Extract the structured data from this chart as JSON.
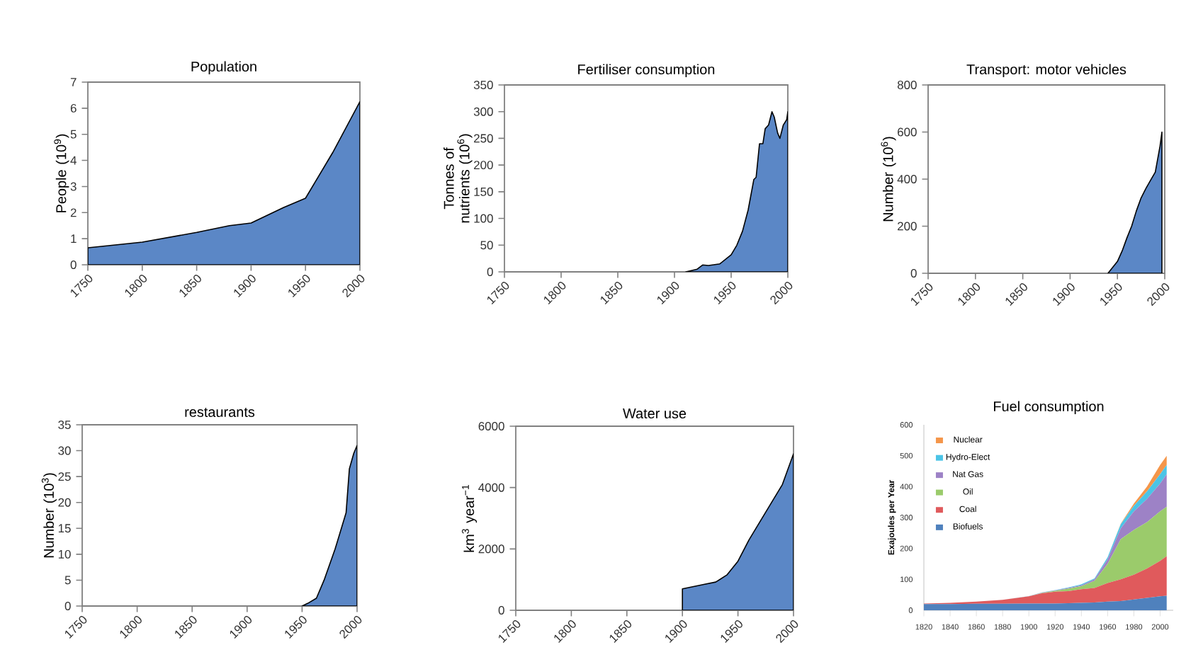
{
  "chart_data": [
    {
      "type": "area",
      "title": "Population",
      "ylabel": "People (10$^{9}$)",
      "color": "#5b87c6",
      "x": [
        1750,
        1800,
        1850,
        1880,
        1900,
        1930,
        1950,
        1975,
        2000
      ],
      "values": [
        0.65,
        0.87,
        1.24,
        1.5,
        1.6,
        2.2,
        2.55,
        4.3,
        6.25
      ],
      "xlim": [
        1750,
        2000
      ],
      "ylim": [
        0,
        7
      ],
      "xticks": [
        1750,
        1800,
        1850,
        1900,
        1950,
        2000
      ],
      "yticks": [
        0,
        1,
        2,
        3,
        4,
        5,
        6,
        7
      ]
    },
    {
      "type": "area",
      "title": "Fertiliser consumption",
      "ylabel": "Tonnes of nutrients (10$^{6}$)",
      "color": "#5b87c6",
      "x": [
        1910,
        1920,
        1925,
        1930,
        1940,
        1950,
        1955,
        1960,
        1965,
        1970,
        1972,
        1975,
        1978,
        1980,
        1983,
        1986,
        1988,
        1991,
        1993,
        1996,
        1999,
        2000
      ],
      "values": [
        0,
        5,
        13,
        12,
        15,
        32,
        50,
        76,
        116,
        173,
        177,
        240,
        240,
        268,
        275,
        300,
        290,
        260,
        250,
        275,
        285,
        300
      ],
      "xlim": [
        1750,
        2000
      ],
      "ylim": [
        0,
        350
      ],
      "xticks": [
        1750,
        1800,
        1850,
        1900,
        1950,
        2000
      ],
      "yticks": [
        0,
        50,
        100,
        150,
        200,
        250,
        300,
        350
      ]
    },
    {
      "type": "area",
      "title": "Transport: motor vehicles",
      "ylabel": "Number (10$^{6}$)",
      "color": "#5b87c6",
      "x": [
        1940,
        1945,
        1950,
        1955,
        1960,
        1965,
        1970,
        1975,
        1980,
        1985,
        1990,
        1995,
        1997
      ],
      "values": [
        0,
        25,
        50,
        95,
        150,
        200,
        265,
        320,
        360,
        395,
        430,
        540,
        600
      ],
      "xlim": [
        1750,
        2000
      ],
      "ylim": [
        0,
        800
      ],
      "xticks": [
        1750,
        1800,
        1850,
        1900,
        1950,
        2000
      ],
      "yticks": [
        0,
        200,
        400,
        600,
        800
      ]
    },
    {
      "type": "area",
      "title": "restaurants",
      "ylabel": "Number (10$^{3}$)",
      "color": "#5b87c6",
      "x": [
        1950,
        1955,
        1963,
        1970,
        1980,
        1990,
        1993,
        1997,
        2000
      ],
      "values": [
        0,
        0.5,
        1.5,
        5,
        11,
        18,
        26.5,
        29.5,
        31
      ],
      "xlim": [
        1750,
        2000
      ],
      "ylim": [
        0,
        35
      ],
      "xticks": [
        1750,
        1800,
        1850,
        1900,
        1950,
        2000
      ],
      "yticks": [
        0,
        5,
        10,
        15,
        20,
        25,
        30,
        35
      ]
    },
    {
      "type": "area",
      "title": "Water use",
      "ylabel": "km$^{3}$ year$^{−1}$",
      "color": "#5b87c6",
      "x": [
        1900,
        1920,
        1930,
        1940,
        1950,
        1960,
        1970,
        1980,
        1990,
        2000
      ],
      "values": [
        700,
        850,
        920,
        1150,
        1600,
        2300,
        2900,
        3500,
        4100,
        5100
      ],
      "xlim": [
        1750,
        2000
      ],
      "ylim": [
        0,
        6000
      ],
      "xticks": [
        1750,
        1800,
        1850,
        1900,
        1950,
        2000
      ],
      "yticks": [
        0,
        2000,
        4000,
        6000
      ]
    },
    {
      "type": "area",
      "title": "Fuel consumption",
      "ylabel": "Exajoules per Year",
      "stacked": true,
      "legend": "top left",
      "x": [
        1820,
        1840,
        1860,
        1880,
        1900,
        1910,
        1920,
        1930,
        1940,
        1950,
        1960,
        1970,
        1980,
        1990,
        2000,
        2005
      ],
      "xlim": [
        1820,
        2010
      ],
      "ylim": [
        0,
        600
      ],
      "xticks": [
        1820,
        1840,
        1860,
        1880,
        1900,
        1920,
        1940,
        1960,
        1980,
        2000
      ],
      "yticks": [
        0,
        100,
        200,
        300,
        400,
        500,
        600
      ],
      "series": [
        {
          "name": "Biofuels",
          "color": "#4f81bd",
          "values": [
            20,
            20,
            21,
            21,
            22,
            22,
            22,
            23,
            24,
            25,
            28,
            30,
            35,
            40,
            45,
            47
          ]
        },
        {
          "name": "Coal",
          "color": "#e05a5c",
          "values": [
            2,
            4,
            7,
            13,
            23,
            33,
            38,
            39,
            44,
            47,
            60,
            70,
            80,
            95,
            115,
            128
          ]
        },
        {
          "name": "Oil",
          "color": "#9bcb6b",
          "values": [
            0,
            0,
            0,
            0,
            0,
            1,
            3,
            8,
            10,
            23,
            62,
            130,
            145,
            150,
            160,
            160
          ]
        },
        {
          "name": "Nat Gas",
          "color": "#9d82c6",
          "values": [
            0,
            0,
            0,
            0,
            0,
            1,
            1,
            2,
            3,
            5,
            15,
            35,
            60,
            75,
            90,
            105
          ]
        },
        {
          "name": "Hydro-Elect",
          "color": "#4bc4e6",
          "values": [
            0,
            0,
            0,
            0,
            1,
            1,
            1,
            2,
            3,
            3,
            7,
            13,
            18,
            25,
            30,
            30
          ]
        },
        {
          "name": "Nuclear",
          "color": "#f5964a",
          "values": [
            0,
            0,
            0,
            0,
            0,
            0,
            0,
            0,
            0,
            0,
            0,
            2,
            7,
            15,
            30,
            30
          ]
        }
      ]
    }
  ]
}
